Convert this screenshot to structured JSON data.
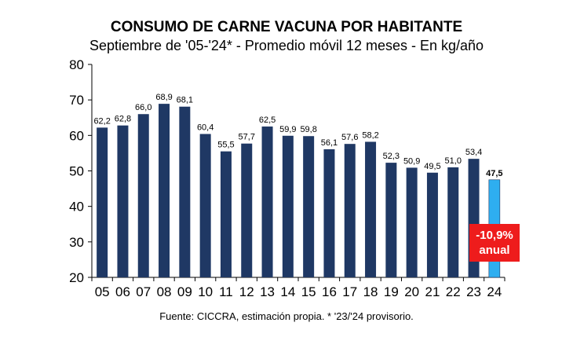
{
  "chart_data": {
    "type": "bar",
    "title": "CONSUMO DE CARNE VACUNA POR HABITANTE",
    "subtitle": "Septiembre de '05-'24* - Promedio móvil 12 meses -  En kg/año",
    "categories": [
      "05",
      "06",
      "07",
      "08",
      "09",
      "10",
      "11",
      "12",
      "13",
      "14",
      "15",
      "16",
      "17",
      "18",
      "19",
      "20",
      "21",
      "22",
      "23",
      "24"
    ],
    "values": [
      62.2,
      62.8,
      66.0,
      68.9,
      68.1,
      60.4,
      55.5,
      57.7,
      62.5,
      59.9,
      59.8,
      56.1,
      57.6,
      58.2,
      52.3,
      50.9,
      49.5,
      51.0,
      53.4,
      47.5
    ],
    "data_labels": [
      "62,2",
      "62,8",
      "66,0",
      "68,9",
      "68,1",
      "60,4",
      "55,5",
      "57,7",
      "62,5",
      "59,9",
      "59,8",
      "56,1",
      "57,6",
      "58,2",
      "52,3",
      "50,9",
      "49,5",
      "51,0",
      "53,4",
      "47,5"
    ],
    "ylim": [
      20,
      80
    ],
    "yticks": [
      20,
      30,
      40,
      50,
      60,
      70,
      80
    ],
    "xlabel": "",
    "ylabel": "",
    "grid": false,
    "colors": {
      "bar": "#1f3864",
      "highlight": "#2eaef0",
      "badge": "#ee1c1c"
    },
    "highlight_index": 19,
    "annotation": {
      "line1": "-10,9%",
      "line2": "anual"
    },
    "footnote": "Fuente: CICCRA, estimación propia. * '23/'24 provisorio."
  }
}
